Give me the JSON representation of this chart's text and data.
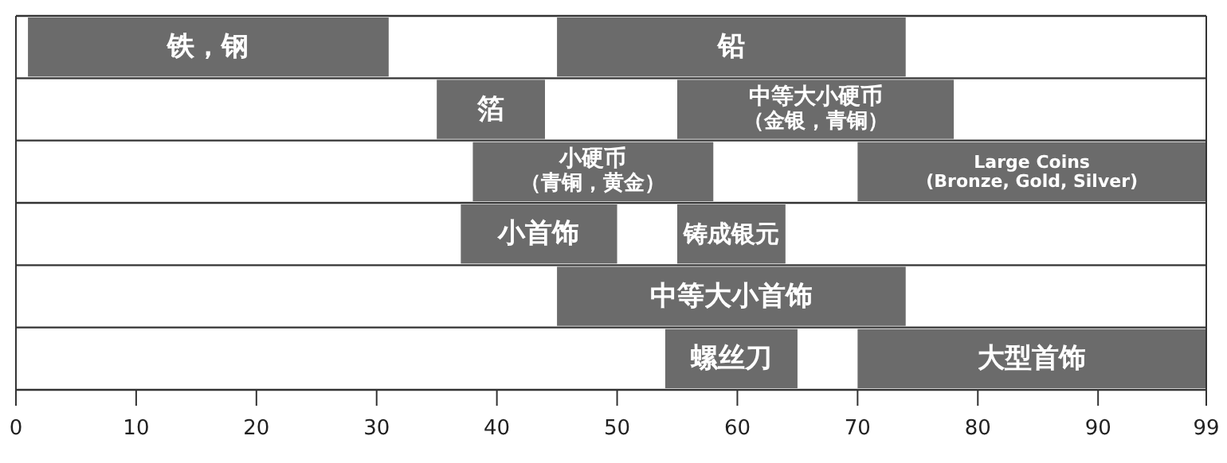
{
  "chart_data": {
    "type": "bar",
    "orientation": "horizontal",
    "categories": [
      null,
      null,
      null,
      null,
      null,
      null
    ],
    "xlim": [
      0,
      99
    ],
    "xticks": [
      0,
      10,
      20,
      30,
      40,
      50,
      60,
      70,
      80,
      90,
      99
    ],
    "series": [
      {
        "name": "铁，钢",
        "color": "#6b6b6b",
        "base": [
          1,
          null,
          null,
          null,
          null,
          null
        ],
        "values": [
          30,
          null,
          null,
          null,
          null,
          null
        ]
      },
      {
        "name": "铅",
        "color": "#6b6b6b",
        "base": [
          45,
          null,
          null,
          null,
          null,
          null
        ],
        "values": [
          29,
          null,
          null,
          null,
          null,
          null
        ]
      },
      {
        "name": "箔",
        "color": "#6b6b6b",
        "base": [
          null,
          35,
          null,
          null,
          null,
          null
        ],
        "values": [
          null,
          9,
          null,
          null,
          null,
          null
        ]
      },
      {
        "name": "中等大小硬币（金银，青铜）",
        "color": "#6b6b6b",
        "base": [
          null,
          55,
          null,
          null,
          null,
          null
        ],
        "values": [
          null,
          23,
          null,
          null,
          null,
          null
        ]
      },
      {
        "name": "小硬币（青铜，黄金）",
        "color": "#6b6b6b",
        "base": [
          null,
          null,
          38,
          null,
          null,
          null
        ],
        "values": [
          null,
          null,
          20,
          null,
          null,
          null
        ]
      },
      {
        "name": "Large Coins (Bronze, Gold, Silver)",
        "color": "#6b6b6b",
        "base": [
          null,
          null,
          70,
          null,
          null,
          null
        ],
        "values": [
          null,
          null,
          29,
          null,
          null,
          null
        ]
      },
      {
        "name": "小首饰",
        "color": "#6b6b6b",
        "base": [
          null,
          null,
          null,
          37,
          null,
          null
        ],
        "values": [
          null,
          null,
          null,
          13,
          null,
          null
        ]
      },
      {
        "name": "铸成银元",
        "color": "#6b6b6b",
        "base": [
          null,
          null,
          null,
          55,
          null,
          null
        ],
        "values": [
          null,
          null,
          null,
          9,
          null,
          null
        ]
      },
      {
        "name": "中等大小首饰",
        "color": "#6b6b6b",
        "base": [
          null,
          null,
          null,
          null,
          45,
          null
        ],
        "values": [
          null,
          null,
          null,
          null,
          29,
          null
        ]
      },
      {
        "name": "螺丝刀",
        "color": "#6b6b6b",
        "base": [
          null,
          null,
          null,
          null,
          null,
          54
        ],
        "values": [
          null,
          null,
          null,
          null,
          null,
          11
        ]
      },
      {
        "name": "大型首饰",
        "color": "#6b6b6b",
        "base": [
          null,
          null,
          null,
          null,
          null,
          70
        ],
        "values": [
          null,
          null,
          null,
          null,
          null,
          29
        ]
      }
    ]
  }
}
